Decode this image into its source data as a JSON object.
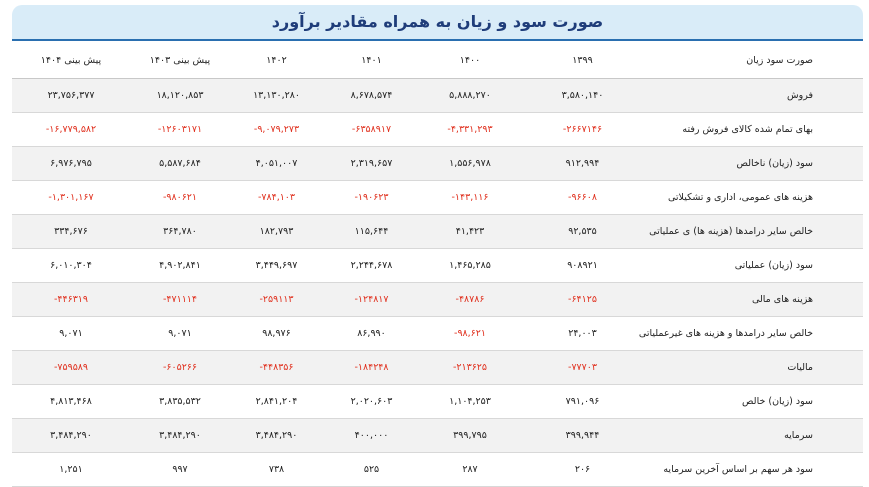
{
  "header": {
    "title": "صورت سود و زیان به همراه مقادیر برآورد"
  },
  "table": {
    "columns": [
      "صورت سود زیان",
      "۱۳۹۹",
      "۱۴۰۰",
      "۱۴۰۱",
      "۱۴۰۲",
      "پیش بینی ۱۴۰۳",
      "پیش بینی ۱۴۰۴"
    ],
    "negative_color": "#e0301e",
    "rows": [
      [
        "فروش",
        "۳,۵۸۰,۱۴۰",
        "۵,۸۸۸,۲۷۰",
        "۸,۶۷۸,۵۷۴",
        "۱۳,۱۳۰,۲۸۰",
        "۱۸,۱۲۰,۸۵۳",
        "۲۳,۷۵۶,۳۷۷"
      ],
      [
        "بهای تمام شده کالای فروش رفته",
        "-۲۶۶۷۱۴۶",
        "-۴,۳۳۱,۲۹۳",
        "-۶۳۵۸۹۱۷",
        "-۹,۰۷۹,۲۷۳",
        "-۱۲۶۰۳۱۷۱",
        "-۱۶,۷۷۹,۵۸۲"
      ],
      [
        "سود (زیان) ناخالص",
        "۹۱۲,۹۹۴",
        "۱,۵۵۶,۹۷۸",
        "۲,۳۱۹,۶۵۷",
        "۴,۰۵۱,۰۰۷",
        "۵,۵۸۷,۶۸۴",
        "۶,۹۷۶,۷۹۵"
      ],
      [
        "هزینه های عمومی، اداری و تشکیلاتی",
        "-۹۶۶۰۸",
        "-۱۴۳,۱۱۶",
        "-۱۹۰۶۲۳",
        "-۷۸۴,۱۰۳",
        "-۹۸۰۶۲۱",
        "-۱,۳۰۱,۱۶۷"
      ],
      [
        "خالص سایر درامدها (هزینه ها) ی عملیاتی",
        "۹۲,۵۳۵",
        "۴۱,۴۲۳",
        "۱۱۵,۶۴۴",
        "۱۸۲,۷۹۳",
        "۳۶۴,۷۸۰",
        "۳۳۴,۶۷۶"
      ],
      [
        "سود (زیان) عملیاتی",
        "۹۰۸۹۲۱",
        "۱,۴۶۵,۲۸۵",
        "۲,۲۴۴,۶۷۸",
        "۳,۴۴۹,۶۹۷",
        "۴,۹۰۲,۸۴۱",
        "۶,۰۱۰,۳۰۴"
      ],
      [
        "هزینه های مالی",
        "-۶۴۱۲۵",
        "-۴۸۷۸۶",
        "-۱۲۴۸۱۷",
        "-۲۵۹۱۱۳",
        "-۴۷۱۱۱۴",
        "-۴۴۶۳۱۹"
      ],
      [
        "خالص سایر درامدها و هزینه های غیرعملیاتی",
        "۲۴,۰۰۳",
        "-۹۸,۶۲۱",
        "۸۶,۹۹۰",
        "۹۸,۹۷۶",
        "۹,۰۷۱",
        "۹,۰۷۱"
      ],
      [
        "مالیات",
        "-۷۷۷۰۳",
        "-۲۱۳۶۲۵",
        "-۱۸۴۲۴۸",
        "-۴۴۸۳۵۶",
        "-۶۰۵۲۶۶",
        "-۷۵۹۵۸۹"
      ],
      [
        "سود (زیان) خالص",
        "۷۹۱,۰۹۶",
        "۱,۱۰۴,۲۵۳",
        "۲,۰۲۰,۶۰۳",
        "۲,۸۴۱,۲۰۴",
        "۳,۸۳۵,۵۳۲",
        "۴,۸۱۳,۴۶۸"
      ],
      [
        "سرمایه",
        "۳۹۹,۹۴۴",
        "۳۹۹,۷۹۵",
        "۴۰۰,۰۰۰",
        "۳,۴۸۴,۲۹۰",
        "۳,۴۸۴,۲۹۰",
        "۳,۴۸۴,۲۹۰"
      ],
      [
        "سود هر سهم بر اساس آخرین سرمایه",
        "۲۰۶",
        "۲۸۷",
        "۵۲۵",
        "۷۳۸",
        "۹۹۷",
        "۱,۲۵۱"
      ]
    ]
  }
}
